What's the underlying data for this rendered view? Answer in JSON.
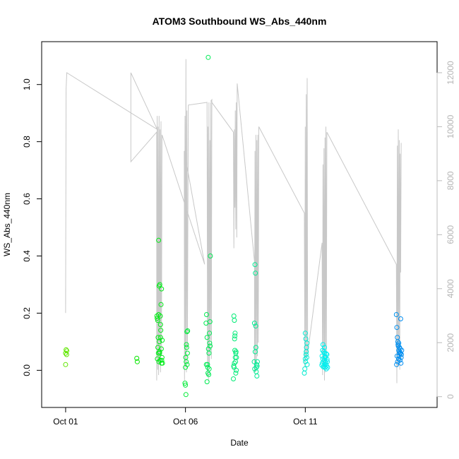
{
  "chart_data": {
    "type": "scatter",
    "title": "ATOM3 Southbound WS_Abs_440nm",
    "xlabel": "Date",
    "ylabel": "WS_Abs_440nm",
    "x_unit": "day of October (fractional)",
    "xlim": [
      0.0,
      16.5
    ],
    "ylim": [
      -0.13,
      1.15
    ],
    "x_ticks": [
      {
        "value": 1,
        "label": "Oct 01"
      },
      {
        "value": 6,
        "label": "Oct 06"
      },
      {
        "value": 11,
        "label": "Oct 11"
      }
    ],
    "y_ticks": [
      {
        "value": 0.0,
        "label": "0.0"
      },
      {
        "value": 0.2,
        "label": "0.2"
      },
      {
        "value": 0.4,
        "label": "0.4"
      },
      {
        "value": 0.6,
        "label": "0.6"
      },
      {
        "value": 0.8,
        "label": "0.8"
      },
      {
        "value": 1.0,
        "label": "1.0"
      }
    ],
    "right_axis": {
      "lim": [
        -400,
        13150
      ],
      "ticks": [
        {
          "value": 0,
          "label": "0"
        },
        {
          "value": 2000,
          "label": "2000"
        },
        {
          "value": 4000,
          "label": "4000"
        },
        {
          "value": 6000,
          "label": "6000"
        },
        {
          "value": 8000,
          "label": "8000"
        },
        {
          "value": 10000,
          "label": "10000"
        },
        {
          "value": 12000,
          "label": "12000"
        }
      ],
      "color": "#bbbbbb"
    },
    "grid": false,
    "legend": "none",
    "point_style": "open circle",
    "color_scale": "color varies with date: green (early) to cyan to blue (late)",
    "points": [
      [
        1.0,
        0.06
      ],
      [
        1.02,
        0.072
      ],
      [
        1.04,
        0.055
      ],
      [
        1.0,
        0.02
      ],
      [
        1.05,
        0.068
      ],
      [
        3.97,
        0.042
      ],
      [
        3.99,
        0.03
      ],
      [
        4.82,
        0.182
      ],
      [
        4.84,
        0.175
      ],
      [
        4.86,
        0.115
      ],
      [
        4.88,
        0.455
      ],
      [
        4.9,
        0.295
      ],
      [
        4.92,
        0.06
      ],
      [
        4.94,
        0.035
      ],
      [
        4.96,
        0.16
      ],
      [
        4.98,
        0.23
      ],
      [
        5.0,
        0.285
      ],
      [
        5.02,
        0.045
      ],
      [
        5.04,
        0.025
      ],
      [
        4.81,
        0.19
      ],
      [
        4.85,
        0.08
      ],
      [
        4.87,
        0.06
      ],
      [
        4.89,
        0.03
      ],
      [
        4.91,
        0.1
      ],
      [
        4.93,
        0.3
      ],
      [
        4.95,
        0.19
      ],
      [
        4.97,
        0.14
      ],
      [
        4.99,
        0.075
      ],
      [
        5.01,
        0.035
      ],
      [
        5.03,
        0.105
      ],
      [
        4.83,
        0.04
      ],
      [
        4.92,
        0.065
      ],
      [
        4.96,
        0.115
      ],
      [
        5.0,
        0.025
      ],
      [
        4.88,
        0.195
      ],
      [
        5.98,
        -0.045
      ],
      [
        6.0,
        -0.052
      ],
      [
        6.02,
        -0.085
      ],
      [
        6.04,
        0.09
      ],
      [
        6.06,
        0.135
      ],
      [
        6.08,
        0.06
      ],
      [
        6.01,
        0.045
      ],
      [
        6.03,
        0.03
      ],
      [
        6.05,
        0.08
      ],
      [
        6.07,
        0.02
      ],
      [
        6.09,
        0.138
      ],
      [
        6.0,
        0.01
      ],
      [
        6.86,
        0.165
      ],
      [
        6.88,
        0.195
      ],
      [
        6.9,
        0.115
      ],
      [
        6.92,
        0.02
      ],
      [
        6.94,
        -0.01
      ],
      [
        6.96,
        0.075
      ],
      [
        6.98,
        0.06
      ],
      [
        7.0,
        0.13
      ],
      [
        7.02,
        0.17
      ],
      [
        7.04,
        0.4
      ],
      [
        6.95,
        1.095
      ],
      [
        6.9,
        -0.04
      ],
      [
        6.93,
        0.01
      ],
      [
        6.97,
        -0.015
      ],
      [
        7.01,
        0.095
      ],
      [
        6.87,
        0.02
      ],
      [
        6.99,
        0.005
      ],
      [
        7.03,
        0.085
      ],
      [
        8.02,
        0.19
      ],
      [
        8.04,
        0.175
      ],
      [
        8.06,
        0.12
      ],
      [
        8.08,
        0.045
      ],
      [
        8.1,
        0.06
      ],
      [
        8.12,
        0.0
      ],
      [
        8.0,
        -0.03
      ],
      [
        8.03,
        0.01
      ],
      [
        8.05,
        0.11
      ],
      [
        8.07,
        0.13
      ],
      [
        8.09,
        0.03
      ],
      [
        8.11,
        0.065
      ],
      [
        8.13,
        0.045
      ],
      [
        8.01,
        0.015
      ],
      [
        8.06,
        0.07
      ],
      [
        8.1,
        -0.01
      ],
      [
        8.04,
        0.025
      ],
      [
        8.88,
        0.165
      ],
      [
        8.9,
        0.37
      ],
      [
        8.92,
        0.34
      ],
      [
        8.94,
        0.08
      ],
      [
        8.96,
        0.01
      ],
      [
        8.98,
        -0.02
      ],
      [
        9.0,
        0.03
      ],
      [
        8.89,
        0.005
      ],
      [
        8.91,
        0.065
      ],
      [
        8.93,
        0.155
      ],
      [
        8.95,
        -0.005
      ],
      [
        8.97,
        0.02
      ],
      [
        8.99,
        0.015
      ],
      [
        8.87,
        0.03
      ],
      [
        11.0,
        0.13
      ],
      [
        11.02,
        0.11
      ],
      [
        11.04,
        0.065
      ],
      [
        11.06,
        0.045
      ],
      [
        11.08,
        0.02
      ],
      [
        10.96,
        -0.01
      ],
      [
        10.98,
        0.005
      ],
      [
        11.01,
        0.03
      ],
      [
        11.03,
        0.055
      ],
      [
        11.05,
        0.08
      ],
      [
        11.07,
        0.095
      ],
      [
        11.0,
        0.04
      ],
      [
        11.7,
        0.05
      ],
      [
        11.72,
        0.07
      ],
      [
        11.74,
        0.09
      ],
      [
        11.76,
        0.03
      ],
      [
        11.78,
        0.015
      ],
      [
        11.8,
        0.06
      ],
      [
        11.82,
        0.01
      ],
      [
        11.84,
        0.045
      ],
      [
        11.86,
        0.02
      ],
      [
        11.88,
        0.005
      ],
      [
        11.9,
        0.055
      ],
      [
        11.92,
        0.03
      ],
      [
        11.71,
        0.025
      ],
      [
        11.73,
        0.04
      ],
      [
        11.75,
        0.012
      ],
      [
        11.77,
        0.065
      ],
      [
        11.79,
        0.035
      ],
      [
        11.81,
        0.02
      ],
      [
        11.83,
        0.048
      ],
      [
        11.85,
        0.028
      ],
      [
        11.87,
        0.058
      ],
      [
        11.89,
        0.015
      ],
      [
        11.91,
        0.038
      ],
      [
        11.93,
        0.01
      ],
      [
        11.69,
        0.018
      ],
      [
        11.8,
        0.08
      ],
      [
        14.8,
        0.195
      ],
      [
        14.82,
        0.15
      ],
      [
        14.84,
        0.115
      ],
      [
        14.86,
        0.1
      ],
      [
        14.88,
        0.085
      ],
      [
        14.9,
        0.07
      ],
      [
        14.92,
        0.065
      ],
      [
        14.94,
        0.06
      ],
      [
        14.96,
        0.075
      ],
      [
        14.98,
        0.18
      ],
      [
        15.0,
        0.045
      ],
      [
        15.02,
        0.07
      ],
      [
        14.81,
        0.02
      ],
      [
        14.83,
        0.05
      ],
      [
        14.85,
        0.03
      ],
      [
        14.87,
        0.09
      ],
      [
        14.89,
        0.04
      ],
      [
        14.91,
        0.05
      ],
      [
        14.93,
        0.08
      ],
      [
        14.95,
        0.035
      ],
      [
        14.97,
        0.06
      ],
      [
        14.99,
        0.025
      ],
      [
        15.01,
        0.055
      ],
      [
        14.9,
        0.095
      ]
    ],
    "secondary_series_color": "#c8c8c8",
    "secondary_series": [
      [
        1.0,
        4000
      ],
      [
        1.0,
        3100
      ],
      [
        1.02,
        11400
      ],
      [
        1.05,
        12000
      ],
      [
        4.82,
        9900
      ],
      [
        3.72,
        12000
      ],
      [
        3.72,
        9500
      ],
      [
        3.72,
        8700
      ],
      [
        4.8,
        9800
      ],
      [
        4.8,
        600
      ],
      [
        4.82,
        10400
      ],
      [
        4.84,
        1000
      ],
      [
        4.86,
        10000
      ],
      [
        4.88,
        800
      ],
      [
        4.9,
        10400
      ],
      [
        4.92,
        1300
      ],
      [
        4.94,
        9900
      ],
      [
        4.96,
        900
      ],
      [
        4.98,
        10200
      ],
      [
        5.0,
        1500
      ],
      [
        5.02,
        9700
      ],
      [
        6.8,
        4900
      ],
      [
        5.95,
        9100
      ],
      [
        5.96,
        600
      ],
      [
        5.98,
        10400
      ],
      [
        6.0,
        1200
      ],
      [
        6.02,
        12500
      ],
      [
        6.04,
        900
      ],
      [
        6.06,
        10600
      ],
      [
        6.08,
        1800
      ],
      [
        6.1,
        6100
      ],
      [
        6.12,
        10800
      ],
      [
        6.9,
        10900
      ],
      [
        6.92,
        800
      ],
      [
        6.94,
        10000
      ],
      [
        6.96,
        600
      ],
      [
        6.98,
        10900
      ],
      [
        7.0,
        1100
      ],
      [
        7.02,
        9500
      ],
      [
        7.04,
        2100
      ],
      [
        7.06,
        10900
      ],
      [
        7.08,
        1400
      ],
      [
        7.1,
        11000
      ],
      [
        7.06,
        10950
      ],
      [
        8.0,
        9800
      ],
      [
        8.02,
        5500
      ],
      [
        8.04,
        9900
      ],
      [
        8.06,
        7000
      ],
      [
        8.08,
        10600
      ],
      [
        8.1,
        6200
      ],
      [
        8.12,
        10900
      ],
      [
        8.14,
        5900
      ],
      [
        8.16,
        11600
      ],
      [
        8.88,
        5000
      ],
      [
        8.88,
        900
      ],
      [
        8.9,
        9100
      ],
      [
        8.92,
        900
      ],
      [
        8.94,
        9700
      ],
      [
        8.96,
        1200
      ],
      [
        8.98,
        9500
      ],
      [
        9.0,
        1500
      ],
      [
        9.02,
        9700
      ],
      [
        9.04,
        2000
      ],
      [
        9.06,
        10000
      ],
      [
        10.96,
        6800
      ],
      [
        10.98,
        1100
      ],
      [
        11.0,
        10000
      ],
      [
        11.02,
        1400
      ],
      [
        11.04,
        11200
      ],
      [
        11.06,
        1500
      ],
      [
        11.08,
        11800
      ],
      [
        11.1,
        1600
      ],
      [
        11.7,
        5700
      ],
      [
        11.72,
        800
      ],
      [
        11.74,
        8600
      ],
      [
        11.76,
        1000
      ],
      [
        11.78,
        9200
      ],
      [
        11.8,
        600
      ],
      [
        11.82,
        9600
      ],
      [
        11.84,
        900
      ],
      [
        11.86,
        10000
      ],
      [
        11.88,
        1200
      ],
      [
        11.9,
        9800
      ],
      [
        14.8,
        4900
      ],
      [
        14.82,
        500
      ],
      [
        14.84,
        9300
      ],
      [
        14.86,
        1100
      ],
      [
        14.88,
        9900
      ],
      [
        14.9,
        1500
      ],
      [
        14.92,
        9500
      ],
      [
        14.94,
        1000
      ],
      [
        14.96,
        9000
      ],
      [
        14.98,
        4600
      ],
      [
        15.0,
        9400
      ]
    ]
  }
}
